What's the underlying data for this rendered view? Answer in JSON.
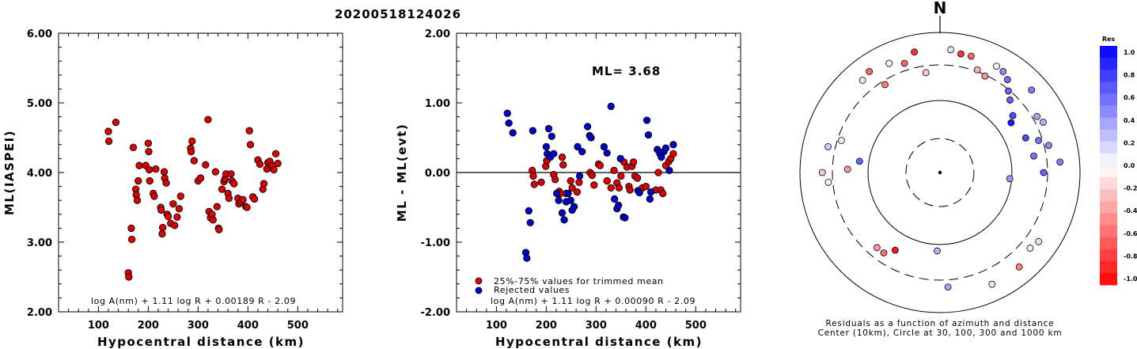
{
  "title": "20200518124026",
  "chart_data": [
    {
      "type": "scatter",
      "ylabel": "ML(IASPEI)",
      "xlabel": "Hypocentral distance (km)",
      "formula": "log A(nm) + 1.11 log R + 0.00189 R - 2.09",
      "xlim": [
        20,
        590
      ],
      "ylim": [
        2.0,
        6.0
      ],
      "xticks": [
        "100",
        "200",
        "300",
        "400",
        "500"
      ],
      "yticks": [
        "2.00",
        "3.00",
        "4.00",
        "5.00",
        "6.00"
      ],
      "color": "#dd0000",
      "points": [
        [
          120,
          4.59
        ],
        [
          121,
          4.45
        ],
        [
          135,
          4.72
        ],
        [
          160,
          2.56
        ],
        [
          161,
          2.5
        ],
        [
          166,
          3.2
        ],
        [
          167,
          3.04
        ],
        [
          170,
          4.36
        ],
        [
          175,
          3.76
        ],
        [
          176,
          3.68
        ],
        [
          178,
          3.6
        ],
        [
          180,
          3.88
        ],
        [
          182,
          4.1
        ],
        [
          195,
          4.1
        ],
        [
          200,
          4.42
        ],
        [
          201,
          4.3
        ],
        [
          202,
          4.04
        ],
        [
          203,
          3.88
        ],
        [
          210,
          3.7
        ],
        [
          212,
          3.66
        ],
        [
          215,
          4.05
        ],
        [
          225,
          3.5
        ],
        [
          226,
          3.46
        ],
        [
          228,
          3.12
        ],
        [
          229,
          3.21
        ],
        [
          232,
          4.01
        ],
        [
          233,
          3.92
        ],
        [
          236,
          3.85
        ],
        [
          238,
          3.4
        ],
        [
          240,
          3.37
        ],
        [
          245,
          3.27
        ],
        [
          250,
          3.55
        ],
        [
          253,
          3.24
        ],
        [
          258,
          3.36
        ],
        [
          262,
          3.48
        ],
        [
          265,
          3.66
        ],
        [
          285,
          4.35
        ],
        [
          286,
          4.3
        ],
        [
          288,
          4.45
        ],
        [
          292,
          4.17
        ],
        [
          300,
          3.88
        ],
        [
          305,
          3.92
        ],
        [
          315,
          4.11
        ],
        [
          320,
          4.76
        ],
        [
          322,
          3.44
        ],
        [
          325,
          3.35
        ],
        [
          328,
          3.4
        ],
        [
          330,
          3.32
        ],
        [
          335,
          4.01
        ],
        [
          338,
          3.51
        ],
        [
          341,
          3.2
        ],
        [
          342,
          3.18
        ],
        [
          348,
          3.76
        ],
        [
          352,
          3.87
        ],
        [
          354,
          3.91
        ],
        [
          356,
          3.98
        ],
        [
          360,
          3.7
        ],
        [
          362,
          3.63
        ],
        [
          366,
          3.98
        ],
        [
          368,
          3.88
        ],
        [
          372,
          3.84
        ],
        [
          380,
          3.63
        ],
        [
          382,
          3.55
        ],
        [
          386,
          3.58
        ],
        [
          390,
          3.61
        ],
        [
          396,
          3.51
        ],
        [
          398,
          3.5
        ],
        [
          403,
          4.6
        ],
        [
          405,
          4.4
        ],
        [
          410,
          3.65
        ],
        [
          413,
          3.62
        ],
        [
          420,
          4.18
        ],
        [
          424,
          4.12
        ],
        [
          430,
          3.76
        ],
        [
          432,
          3.84
        ],
        [
          438,
          4.05
        ],
        [
          440,
          4.14
        ],
        [
          444,
          4.16
        ],
        [
          448,
          4.1
        ],
        [
          452,
          4.04
        ],
        [
          456,
          4.27
        ],
        [
          460,
          4.13
        ]
      ]
    },
    {
      "type": "scatter",
      "ylabel": "ML - ML(evt)",
      "xlabel": "Hypocentral distance (km)",
      "annotation": "ML= 3.68",
      "formula": "log A(nm) + 1.11 log R + 0.00090 R - 2.09",
      "xlim": [
        20,
        590
      ],
      "ylim": [
        -2.0,
        2.0
      ],
      "xticks": [
        "100",
        "200",
        "300",
        "400",
        "500"
      ],
      "yticks": [
        "-2.00",
        "-1.00",
        "0.00",
        "1.00",
        "2.00"
      ],
      "legend": [
        "25%-75% values for trimmed mean",
        "Rejected values"
      ],
      "colors": {
        "trimmed": "#dd0000",
        "rejected": "#0000cc"
      },
      "series": [
        {
          "name": "25%-75% values for trimmed mean",
          "points": [
            [
              172,
              0.03
            ],
            [
              174,
              -0.05
            ],
            [
              176,
              -0.17
            ],
            [
              190,
              -0.14
            ],
            [
              199,
              0.09
            ],
            [
              201,
              0.17
            ],
            [
              215,
              -0.03
            ],
            [
              218,
              -0.1
            ],
            [
              226,
              -0.27
            ],
            [
              228,
              -0.3
            ],
            [
              232,
              0.22
            ],
            [
              234,
              0.11
            ],
            [
              240,
              -0.3
            ],
            [
              249,
              -0.12
            ],
            [
              252,
              -0.22
            ],
            [
              262,
              -0.28
            ],
            [
              266,
              -0.14
            ],
            [
              288,
              0.0
            ],
            [
              292,
              -0.04
            ],
            [
              296,
              -0.18
            ],
            [
              305,
              0.12
            ],
            [
              308,
              0.1
            ],
            [
              322,
              -0.12
            ],
            [
              330,
              -0.22
            ],
            [
              336,
              0.03
            ],
            [
              342,
              -0.15
            ],
            [
              346,
              -0.22
            ],
            [
              350,
              -0.05
            ],
            [
              356,
              0.15
            ],
            [
              362,
              0.08
            ],
            [
              366,
              -0.2
            ],
            [
              368,
              -0.25
            ],
            [
              372,
              0.09
            ],
            [
              375,
              0.15
            ],
            [
              378,
              -0.05
            ],
            [
              383,
              -0.08
            ],
            [
              393,
              -0.22
            ],
            [
              400,
              -0.2
            ],
            [
              420,
              -0.25
            ],
            [
              425,
              0.0
            ],
            [
              430,
              -0.25
            ],
            [
              434,
              -0.3
            ],
            [
              440,
              0.1
            ],
            [
              446,
              0.16
            ],
            [
              450,
              0.2
            ],
            [
              455,
              0.27
            ]
          ]
        },
        {
          "name": "Rejected values",
          "points": [
            [
              122,
              0.85
            ],
            [
              125,
              0.71
            ],
            [
              133,
              0.57
            ],
            [
              159,
              -1.15
            ],
            [
              161,
              -1.23
            ],
            [
              165,
              -0.55
            ],
            [
              168,
              -0.72
            ],
            [
              173,
              0.6
            ],
            [
              200,
              0.37
            ],
            [
              202,
              0.27
            ],
            [
              205,
              0.63
            ],
            [
              208,
              0.22
            ],
            [
              211,
              0.52
            ],
            [
              215,
              0.27
            ],
            [
              221,
              -0.3
            ],
            [
              225,
              -0.4
            ],
            [
              232,
              -0.58
            ],
            [
              236,
              -0.68
            ],
            [
              240,
              -0.42
            ],
            [
              244,
              -0.3
            ],
            [
              249,
              -0.4
            ],
            [
              252,
              -0.54
            ],
            [
              256,
              -0.49
            ],
            [
              263,
              0.37
            ],
            [
              267,
              -0.05
            ],
            [
              272,
              0.3
            ],
            [
              283,
              0.66
            ],
            [
              287,
              0.53
            ],
            [
              290,
              0.5
            ],
            [
              316,
              0.37
            ],
            [
              322,
              0.28
            ],
            [
              330,
              0.95
            ],
            [
              337,
              -0.38
            ],
            [
              342,
              -0.52
            ],
            [
              345,
              -0.47
            ],
            [
              349,
              0.2
            ],
            [
              355,
              -0.64
            ],
            [
              358,
              -0.65
            ],
            [
              384,
              -0.26
            ],
            [
              387,
              -0.29
            ],
            [
              402,
              0.75
            ],
            [
              405,
              0.54
            ],
            [
              408,
              -0.38
            ],
            [
              410,
              -0.28
            ],
            [
              423,
              0.33
            ],
            [
              428,
              0.27
            ],
            [
              431,
              0.22
            ],
            [
              436,
              0.3
            ],
            [
              440,
              0.35
            ],
            [
              447,
              0.03
            ],
            [
              455,
              0.4
            ]
          ]
        }
      ]
    },
    {
      "type": "scatter",
      "subtype": "polar-residuals",
      "north_label": "N",
      "caption": [
        "Residuals as a function of azimuth and distance",
        "Center (10km), Circle at 30, 100, 300 and 1000 km"
      ],
      "colorbar": {
        "title": "Res",
        "ticks": [
          "1.0",
          "0.8",
          "0.6",
          "0.4",
          "0.2",
          "0.0",
          "-0.2",
          "-0.4",
          "-0.6",
          "-0.8",
          "-1.0"
        ],
        "positive_color": "#0000ee",
        "negative_color": "#ee0000"
      },
      "points": [
        [
          5,
          0.1
        ],
        [
          10,
          -0.8
        ],
        [
          15,
          -0.6
        ],
        [
          20,
          -0.3
        ],
        [
          25,
          -0.4
        ],
        [
          28,
          -0.05
        ],
        [
          32,
          0.45
        ],
        [
          36,
          0.55
        ],
        [
          40,
          0.6
        ],
        [
          44,
          0.62
        ],
        [
          48,
          0.5
        ],
        [
          52,
          0.7
        ],
        [
          55,
          0.9
        ],
        [
          60,
          0.35
        ],
        [
          64,
          0.3
        ],
        [
          68,
          0.7
        ],
        [
          72,
          0.55
        ],
        [
          76,
          0.45
        ],
        [
          80,
          0.55
        ],
        [
          85,
          0.5
        ],
        [
          90,
          0.6
        ],
        [
          95,
          0.4
        ],
        [
          125,
          0.1
        ],
        [
          130,
          0.05
        ],
        [
          140,
          -0.5
        ],
        [
          155,
          0.1
        ],
        [
          176,
          0.35
        ],
        [
          182,
          0.3
        ],
        [
          210,
          -0.9
        ],
        [
          215,
          -0.55
        ],
        [
          220,
          -0.4
        ],
        [
          265,
          0.05
        ],
        [
          270,
          -0.2
        ],
        [
          272,
          -0.4
        ],
        [
          278,
          0.6
        ],
        [
          283,
          0.2
        ],
        [
          288,
          0.05
        ],
        [
          320,
          -0.1
        ],
        [
          325,
          -0.6
        ],
        [
          328,
          -0.5
        ],
        [
          335,
          -0.05
        ],
        [
          342,
          -0.6
        ],
        [
          348,
          -0.8
        ],
        [
          352,
          -0.2
        ]
      ],
      "radii": [
        0.88,
        0.86,
        0.86,
        0.78,
        0.76,
        0.86,
        0.85,
        0.82,
        0.76,
        0.72,
        0.88,
        0.66,
        0.62,
        0.8,
        0.82,
        0.66,
        0.74,
        0.8,
        0.68,
        0.86,
        0.74,
        0.5,
        0.86,
        0.84,
        0.88,
        0.88,
        0.82,
        0.56,
        0.64,
        0.7,
        0.7,
        0.8,
        0.84,
        0.66,
        0.58,
        0.82,
        0.74,
        0.86,
        0.88,
        0.74,
        0.86,
        0.82,
        0.88,
        0.72
      ]
    }
  ]
}
